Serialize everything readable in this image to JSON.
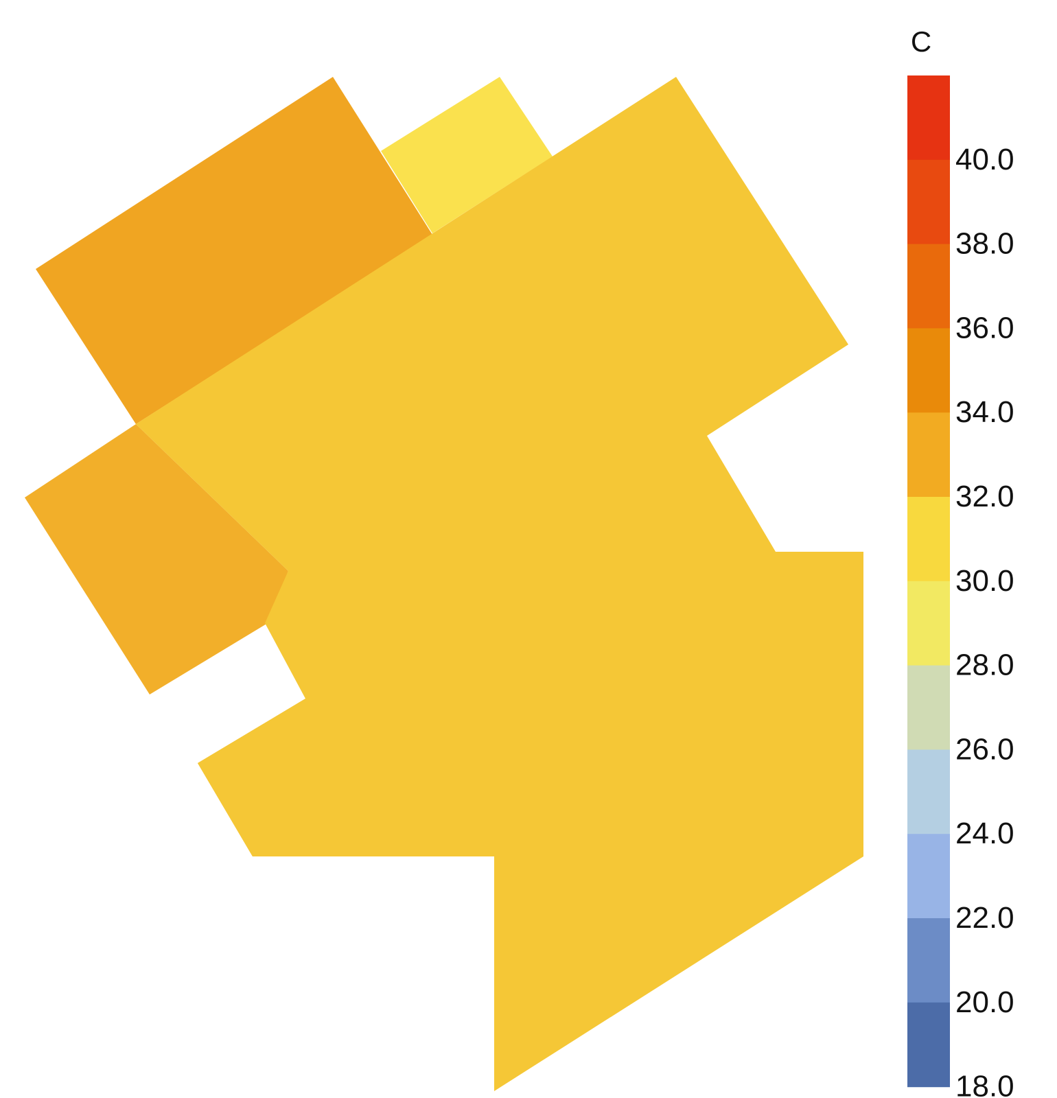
{
  "legend": {
    "unit": "C",
    "ticks": [
      "40.0",
      "38.0",
      "36.0",
      "34.0",
      "32.0",
      "30.0",
      "28.0",
      "26.0",
      "24.0",
      "22.0",
      "20.0",
      "18.0"
    ],
    "bands": [
      {
        "color": "#e63312"
      },
      {
        "color": "#e84a10"
      },
      {
        "color": "#e96a0c"
      },
      {
        "color": "#e98a0a"
      },
      {
        "color": "#f2ab22"
      },
      {
        "color": "#f8d93e"
      },
      {
        "color": "#f2e962"
      },
      {
        "color": "#d0dbb4"
      },
      {
        "color": "#b4cfe2"
      },
      {
        "color": "#98b4e6"
      },
      {
        "color": "#6c8cc6"
      },
      {
        "color": "#4c6ca8"
      }
    ]
  },
  "map": {
    "zones": [
      {
        "id": "northwest-block",
        "color": "#f0a522"
      },
      {
        "id": "north-strip",
        "color": "#fae14e"
      },
      {
        "id": "west-block",
        "color": "#f2af2a"
      },
      {
        "id": "southwest-wing",
        "color": "#f2b830"
      },
      {
        "id": "main-block",
        "color": "#f5c736"
      }
    ]
  }
}
